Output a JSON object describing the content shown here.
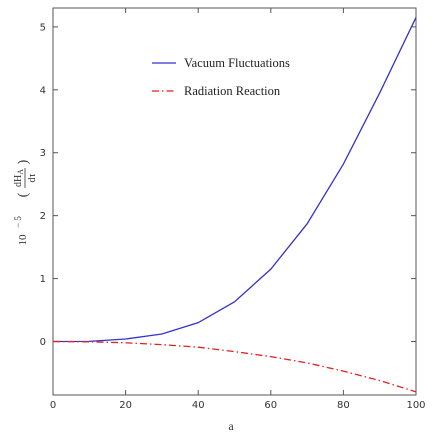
{
  "chart_data": {
    "type": "line",
    "xlabel": "a",
    "ylabel": {
      "prefix": "10",
      "exponent": "− 5",
      "paren_open": "(",
      "numerator": "dH",
      "numerator_sub": "A",
      "denominator": "dτ",
      "paren_close": ")"
    },
    "xlim": [
      0,
      100
    ],
    "ylim": [
      -0.85,
      5.3
    ],
    "xticks": [
      0,
      20,
      40,
      60,
      80,
      100
    ],
    "yticks": [
      0,
      1,
      2,
      3,
      4,
      5
    ],
    "grid": false,
    "legend_position": "top-center",
    "series": [
      {
        "name": "Vacuum Fluctuations",
        "color": "#3333cc",
        "dash": "solid",
        "x": [
          0,
          10,
          20,
          30,
          40,
          50,
          60,
          70,
          80,
          90,
          100
        ],
        "y": [
          0,
          0.002,
          0.04,
          0.12,
          0.3,
          0.63,
          1.15,
          1.87,
          2.82,
          3.95,
          5.15
        ]
      },
      {
        "name": "Radiation Reaction",
        "color": "#dd2222",
        "dash": "dashdot",
        "x": [
          0,
          10,
          20,
          30,
          40,
          50,
          60,
          70,
          80,
          90,
          100
        ],
        "y": [
          0,
          -0.005,
          -0.02,
          -0.05,
          -0.09,
          -0.16,
          -0.24,
          -0.34,
          -0.47,
          -0.62,
          -0.8
        ]
      }
    ]
  }
}
